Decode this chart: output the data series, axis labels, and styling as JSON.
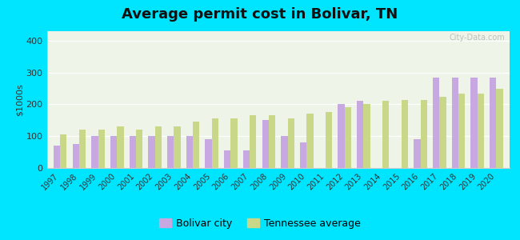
{
  "years": [
    1997,
    1998,
    1999,
    2000,
    2001,
    2002,
    2003,
    2004,
    2005,
    2006,
    2007,
    2008,
    2009,
    2010,
    2011,
    2012,
    2013,
    2014,
    2015,
    2016,
    2017,
    2018,
    2019,
    2020
  ],
  "bolivar": [
    70,
    75,
    100,
    100,
    100,
    100,
    100,
    100,
    90,
    55,
    55,
    150,
    100,
    80,
    0,
    200,
    210,
    0,
    0,
    90,
    285,
    285,
    285,
    285
  ],
  "tennessee": [
    105,
    120,
    120,
    130,
    120,
    130,
    130,
    145,
    155,
    155,
    165,
    165,
    155,
    170,
    175,
    190,
    200,
    210,
    215,
    215,
    225,
    235,
    235,
    250
  ],
  "bar_color_bolivar": "#c8a8e0",
  "bar_color_tennessee": "#c8d888",
  "title": "Average permit cost in Bolivar, TN",
  "ylabel": "$1000s",
  "ylim": [
    0,
    430
  ],
  "yticks": [
    0,
    100,
    200,
    300,
    400
  ],
  "bg_color": "#eef5e8",
  "outer_background": "#00e5ff",
  "legend_bolivar": "Bolivar city",
  "legend_tennessee": "Tennessee average",
  "title_fontsize": 13
}
